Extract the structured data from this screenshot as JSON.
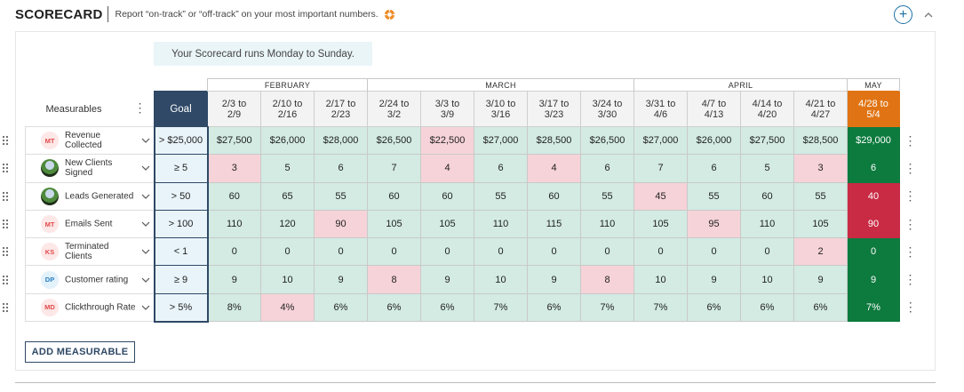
{
  "header": {
    "title": "SCORECARD",
    "subtitle": "Report “on-track” or “off-track” on your most important numbers.",
    "help_icon": "help-icon"
  },
  "banner": "Your Scorecard runs Monday to Sunday.",
  "table": {
    "measurables_label": "Measurables",
    "goal_label": "Goal",
    "months": [
      {
        "label": "FEBRUARY",
        "span": 3
      },
      {
        "label": "MARCH",
        "span": 5
      },
      {
        "label": "APRIL",
        "span": 4
      },
      {
        "label": "MAY",
        "span": 1
      }
    ],
    "weeks": [
      [
        "2/3 to",
        "2/9"
      ],
      [
        "2/10 to",
        "2/16"
      ],
      [
        "2/17 to",
        "2/23"
      ],
      [
        "2/24 to",
        "3/2"
      ],
      [
        "3/3 to",
        "3/9"
      ],
      [
        "3/10 to",
        "3/16"
      ],
      [
        "3/17 to",
        "3/23"
      ],
      [
        "3/24 to",
        "3/30"
      ],
      [
        "3/31 to",
        "4/6"
      ],
      [
        "4/7 to",
        "4/13"
      ],
      [
        "4/14 to",
        "4/20"
      ],
      [
        "4/21 to",
        "4/27"
      ],
      [
        "4/28 to",
        "5/4"
      ]
    ],
    "rows": [
      {
        "name": "Revenue Collected",
        "owner": "MT",
        "owner_style": "mt",
        "goal": "> $25,000",
        "values": [
          "$27,500",
          "$26,000",
          "$28,000",
          "$26,500",
          "$22,500",
          "$27,000",
          "$28,500",
          "$26,500",
          "$27,000",
          "$26,000",
          "$27,500",
          "$28,500",
          "$29,000"
        ],
        "status": [
          "on",
          "on",
          "on",
          "on",
          "off",
          "on",
          "on",
          "on",
          "on",
          "on",
          "on",
          "on",
          "on"
        ]
      },
      {
        "name": "New Clients Signed",
        "owner": "",
        "owner_style": "photo",
        "goal": "≥ 5",
        "values": [
          "3",
          "5",
          "6",
          "7",
          "4",
          "6",
          "4",
          "6",
          "7",
          "6",
          "5",
          "3",
          "6"
        ],
        "status": [
          "off",
          "on",
          "on",
          "on",
          "off",
          "on",
          "off",
          "on",
          "on",
          "on",
          "on",
          "off",
          "on"
        ]
      },
      {
        "name": "Leads Generated",
        "owner": "",
        "owner_style": "photo",
        "goal": "> 50",
        "values": [
          "60",
          "65",
          "55",
          "60",
          "60",
          "55",
          "60",
          "55",
          "45",
          "55",
          "60",
          "55",
          "40"
        ],
        "status": [
          "on",
          "on",
          "on",
          "on",
          "on",
          "on",
          "on",
          "on",
          "off",
          "on",
          "on",
          "on",
          "off"
        ]
      },
      {
        "name": "Emails Sent",
        "owner": "MT",
        "owner_style": "mt",
        "goal": "> 100",
        "values": [
          "110",
          "120",
          "90",
          "105",
          "105",
          "110",
          "115",
          "110",
          "105",
          "95",
          "110",
          "105",
          "90"
        ],
        "status": [
          "on",
          "on",
          "off",
          "on",
          "on",
          "on",
          "on",
          "on",
          "on",
          "off",
          "on",
          "on",
          "off"
        ]
      },
      {
        "name": "Terminated Clients",
        "owner": "KS",
        "owner_style": "ks",
        "goal": "< 1",
        "values": [
          "0",
          "0",
          "0",
          "0",
          "0",
          "0",
          "0",
          "0",
          "0",
          "0",
          "0",
          "2",
          "0"
        ],
        "status": [
          "on",
          "on",
          "on",
          "on",
          "on",
          "on",
          "on",
          "on",
          "on",
          "on",
          "on",
          "off",
          "on"
        ]
      },
      {
        "name": "Customer rating",
        "owner": "DP",
        "owner_style": "dp",
        "goal": "≥ 9",
        "values": [
          "9",
          "10",
          "9",
          "8",
          "9",
          "10",
          "9",
          "8",
          "10",
          "9",
          "10",
          "9",
          "9"
        ],
        "status": [
          "on",
          "on",
          "on",
          "off",
          "on",
          "on",
          "on",
          "off",
          "on",
          "on",
          "on",
          "on",
          "on"
        ]
      },
      {
        "name": "Clickthrough Rate",
        "owner": "MD",
        "owner_style": "md",
        "goal": "> 5%",
        "values": [
          "8%",
          "4%",
          "6%",
          "6%",
          "6%",
          "7%",
          "6%",
          "7%",
          "7%",
          "6%",
          "6%",
          "6%",
          "7%"
        ],
        "status": [
          "on",
          "off",
          "on",
          "on",
          "on",
          "on",
          "on",
          "on",
          "on",
          "on",
          "on",
          "on",
          "on"
        ]
      }
    ]
  },
  "add_button": "ADD MEASURABLE",
  "colors": {
    "goal_header": "#2f4966",
    "current_week": "#e07414",
    "on_track": "#d3ebe2",
    "off_track": "#f6d3d8",
    "current_on": "#0d7a3e",
    "current_off": "#c92a44"
  }
}
